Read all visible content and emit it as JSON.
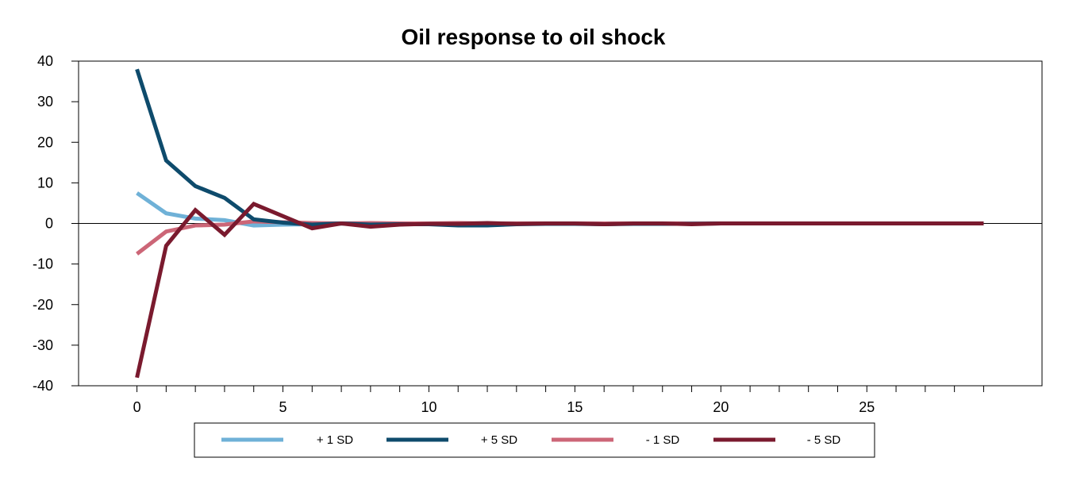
{
  "chart_data": {
    "type": "line",
    "title": "Oil response to oil shock",
    "xlabel": "",
    "ylabel": "",
    "xlim": [
      -2,
      31
    ],
    "ylim": [
      -40,
      40
    ],
    "yticks": [
      -40,
      -30,
      -20,
      -10,
      0,
      10,
      20,
      30,
      40
    ],
    "xticks_labeled": [
      0,
      5,
      10,
      15,
      20,
      25
    ],
    "xticks_minor": [
      0,
      1,
      2,
      3,
      4,
      5,
      6,
      7,
      8,
      9,
      10,
      11,
      12,
      13,
      14,
      15,
      16,
      17,
      18,
      19,
      20,
      21,
      22,
      23,
      24,
      25,
      26,
      27,
      28,
      29
    ],
    "grid": false,
    "legend_position": "bottom",
    "x": [
      0,
      1,
      2,
      3,
      4,
      5,
      6,
      7,
      8,
      9,
      10,
      11,
      12,
      13,
      14,
      15,
      16,
      17,
      18,
      19,
      20,
      21,
      22,
      23,
      24,
      25,
      26,
      27,
      28,
      29
    ],
    "series": [
      {
        "name": "+ 1 SD",
        "color": "#6FB1D7",
        "values": [
          7.5,
          2.5,
          1.2,
          0.8,
          -0.5,
          -0.3,
          -0.2,
          0,
          -0.1,
          0,
          0,
          -0.1,
          0,
          0,
          0,
          0,
          0,
          0,
          0,
          0,
          0,
          0,
          0,
          0,
          0,
          0,
          0,
          0,
          0,
          0
        ]
      },
      {
        "name": "+ 5 SD",
        "color": "#0E4B6C",
        "values": [
          38,
          15.5,
          9.2,
          6.3,
          1,
          0.2,
          -0.3,
          0,
          -0.3,
          -0.2,
          -0.2,
          -0.5,
          -0.5,
          -0.2,
          -0.1,
          -0.1,
          -0.2,
          -0.1,
          -0.1,
          -0.1,
          0,
          0,
          0,
          0,
          0,
          0,
          0,
          0,
          0,
          0
        ]
      },
      {
        "name": "- 1 SD",
        "color": "#CC6677",
        "values": [
          -7.5,
          -2,
          -0.5,
          -0.3,
          0.5,
          0.3,
          0.1,
          0,
          0.1,
          0,
          0,
          0.1,
          0,
          0,
          0,
          0,
          0,
          0,
          0,
          0,
          0,
          0,
          0,
          0,
          0,
          0,
          0,
          0,
          0,
          0
        ]
      },
      {
        "name": "- 5 SD",
        "color": "#7A1A2E",
        "values": [
          -38,
          -5.5,
          3.3,
          -2.8,
          4.8,
          1.8,
          -1.2,
          0,
          -0.8,
          -0.3,
          -0.1,
          -0.1,
          0.1,
          -0.1,
          0,
          0,
          -0.2,
          0,
          0,
          -0.2,
          0,
          0,
          0,
          0,
          0,
          0,
          0,
          0,
          0,
          0
        ]
      }
    ]
  }
}
